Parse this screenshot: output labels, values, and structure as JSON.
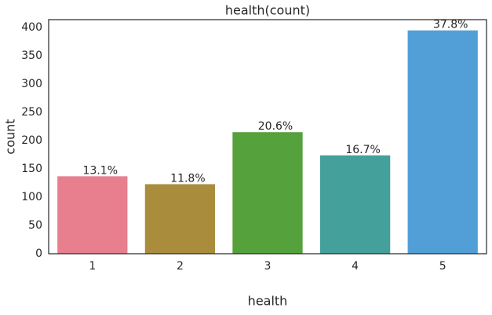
{
  "chart_data": {
    "type": "bar",
    "title": "health(count)",
    "x_label": "health",
    "y_label": "count",
    "categories": [
      "1",
      "2",
      "3",
      "4",
      "5"
    ],
    "values": [
      137,
      123,
      215,
      174,
      395
    ],
    "annotations": [
      "13.1%",
      "11.8%",
      "20.6%",
      "16.7%",
      "37.8%"
    ],
    "colors": [
      "#e77f8f",
      "#a98d3c",
      "#55a13b",
      "#44a09a",
      "#529fd7"
    ],
    "ylim": [
      0,
      414
    ],
    "yticks": [
      0,
      50,
      100,
      150,
      200,
      250,
      300,
      350,
      400
    ],
    "grid": false
  }
}
